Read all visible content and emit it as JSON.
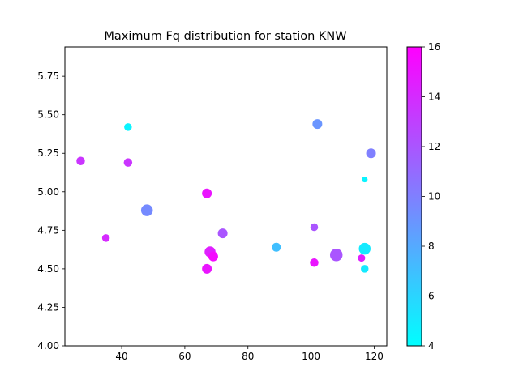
{
  "chart_data": {
    "type": "scatter",
    "title": "Maximum Fq distribution for station KNW",
    "xlabel": "",
    "ylabel": "",
    "xlim": [
      22,
      124
    ],
    "ylim": [
      4.0,
      5.94
    ],
    "x_ticks": [
      40,
      60,
      80,
      100,
      120
    ],
    "y_ticks": [
      4.0,
      4.25,
      4.5,
      4.75,
      5.0,
      5.25,
      5.5,
      5.75
    ],
    "grid": false,
    "colorbar": {
      "colormap": "cool",
      "range": [
        4,
        16
      ],
      "ticks": [
        4,
        6,
        8,
        10,
        12,
        14,
        16
      ]
    },
    "points": [
      {
        "x": 27,
        "y": 5.2,
        "c": 13.5,
        "s": 0.45
      },
      {
        "x": 35,
        "y": 4.7,
        "c": 14.0,
        "s": 0.35
      },
      {
        "x": 42,
        "y": 5.42,
        "c": 4.5,
        "s": 0.35
      },
      {
        "x": 42,
        "y": 5.19,
        "c": 13.5,
        "s": 0.45
      },
      {
        "x": 48,
        "y": 4.88,
        "c": 9.5,
        "s": 0.85
      },
      {
        "x": 67,
        "y": 4.99,
        "c": 15.0,
        "s": 0.6
      },
      {
        "x": 67,
        "y": 4.5,
        "c": 15.0,
        "s": 0.6
      },
      {
        "x": 68,
        "y": 4.61,
        "c": 14.5,
        "s": 0.75
      },
      {
        "x": 69,
        "y": 4.58,
        "c": 15.5,
        "s": 0.6
      },
      {
        "x": 72,
        "y": 4.73,
        "c": 12.0,
        "s": 0.6
      },
      {
        "x": 89,
        "y": 4.64,
        "c": 7.0,
        "s": 0.5
      },
      {
        "x": 101,
        "y": 4.77,
        "c": 12.0,
        "s": 0.35
      },
      {
        "x": 101,
        "y": 4.54,
        "c": 15.0,
        "s": 0.45
      },
      {
        "x": 102,
        "y": 5.44,
        "c": 9.0,
        "s": 0.6
      },
      {
        "x": 108,
        "y": 4.59,
        "c": 12.0,
        "s": 0.95
      },
      {
        "x": 116,
        "y": 4.57,
        "c": 14.5,
        "s": 0.3
      },
      {
        "x": 117,
        "y": 5.08,
        "c": 4.5,
        "s": 0.12
      },
      {
        "x": 117,
        "y": 4.63,
        "c": 5.0,
        "s": 0.85
      },
      {
        "x": 117,
        "y": 4.5,
        "c": 5.0,
        "s": 0.35
      },
      {
        "x": 119,
        "y": 5.25,
        "c": 10.0,
        "s": 0.6
      }
    ]
  }
}
